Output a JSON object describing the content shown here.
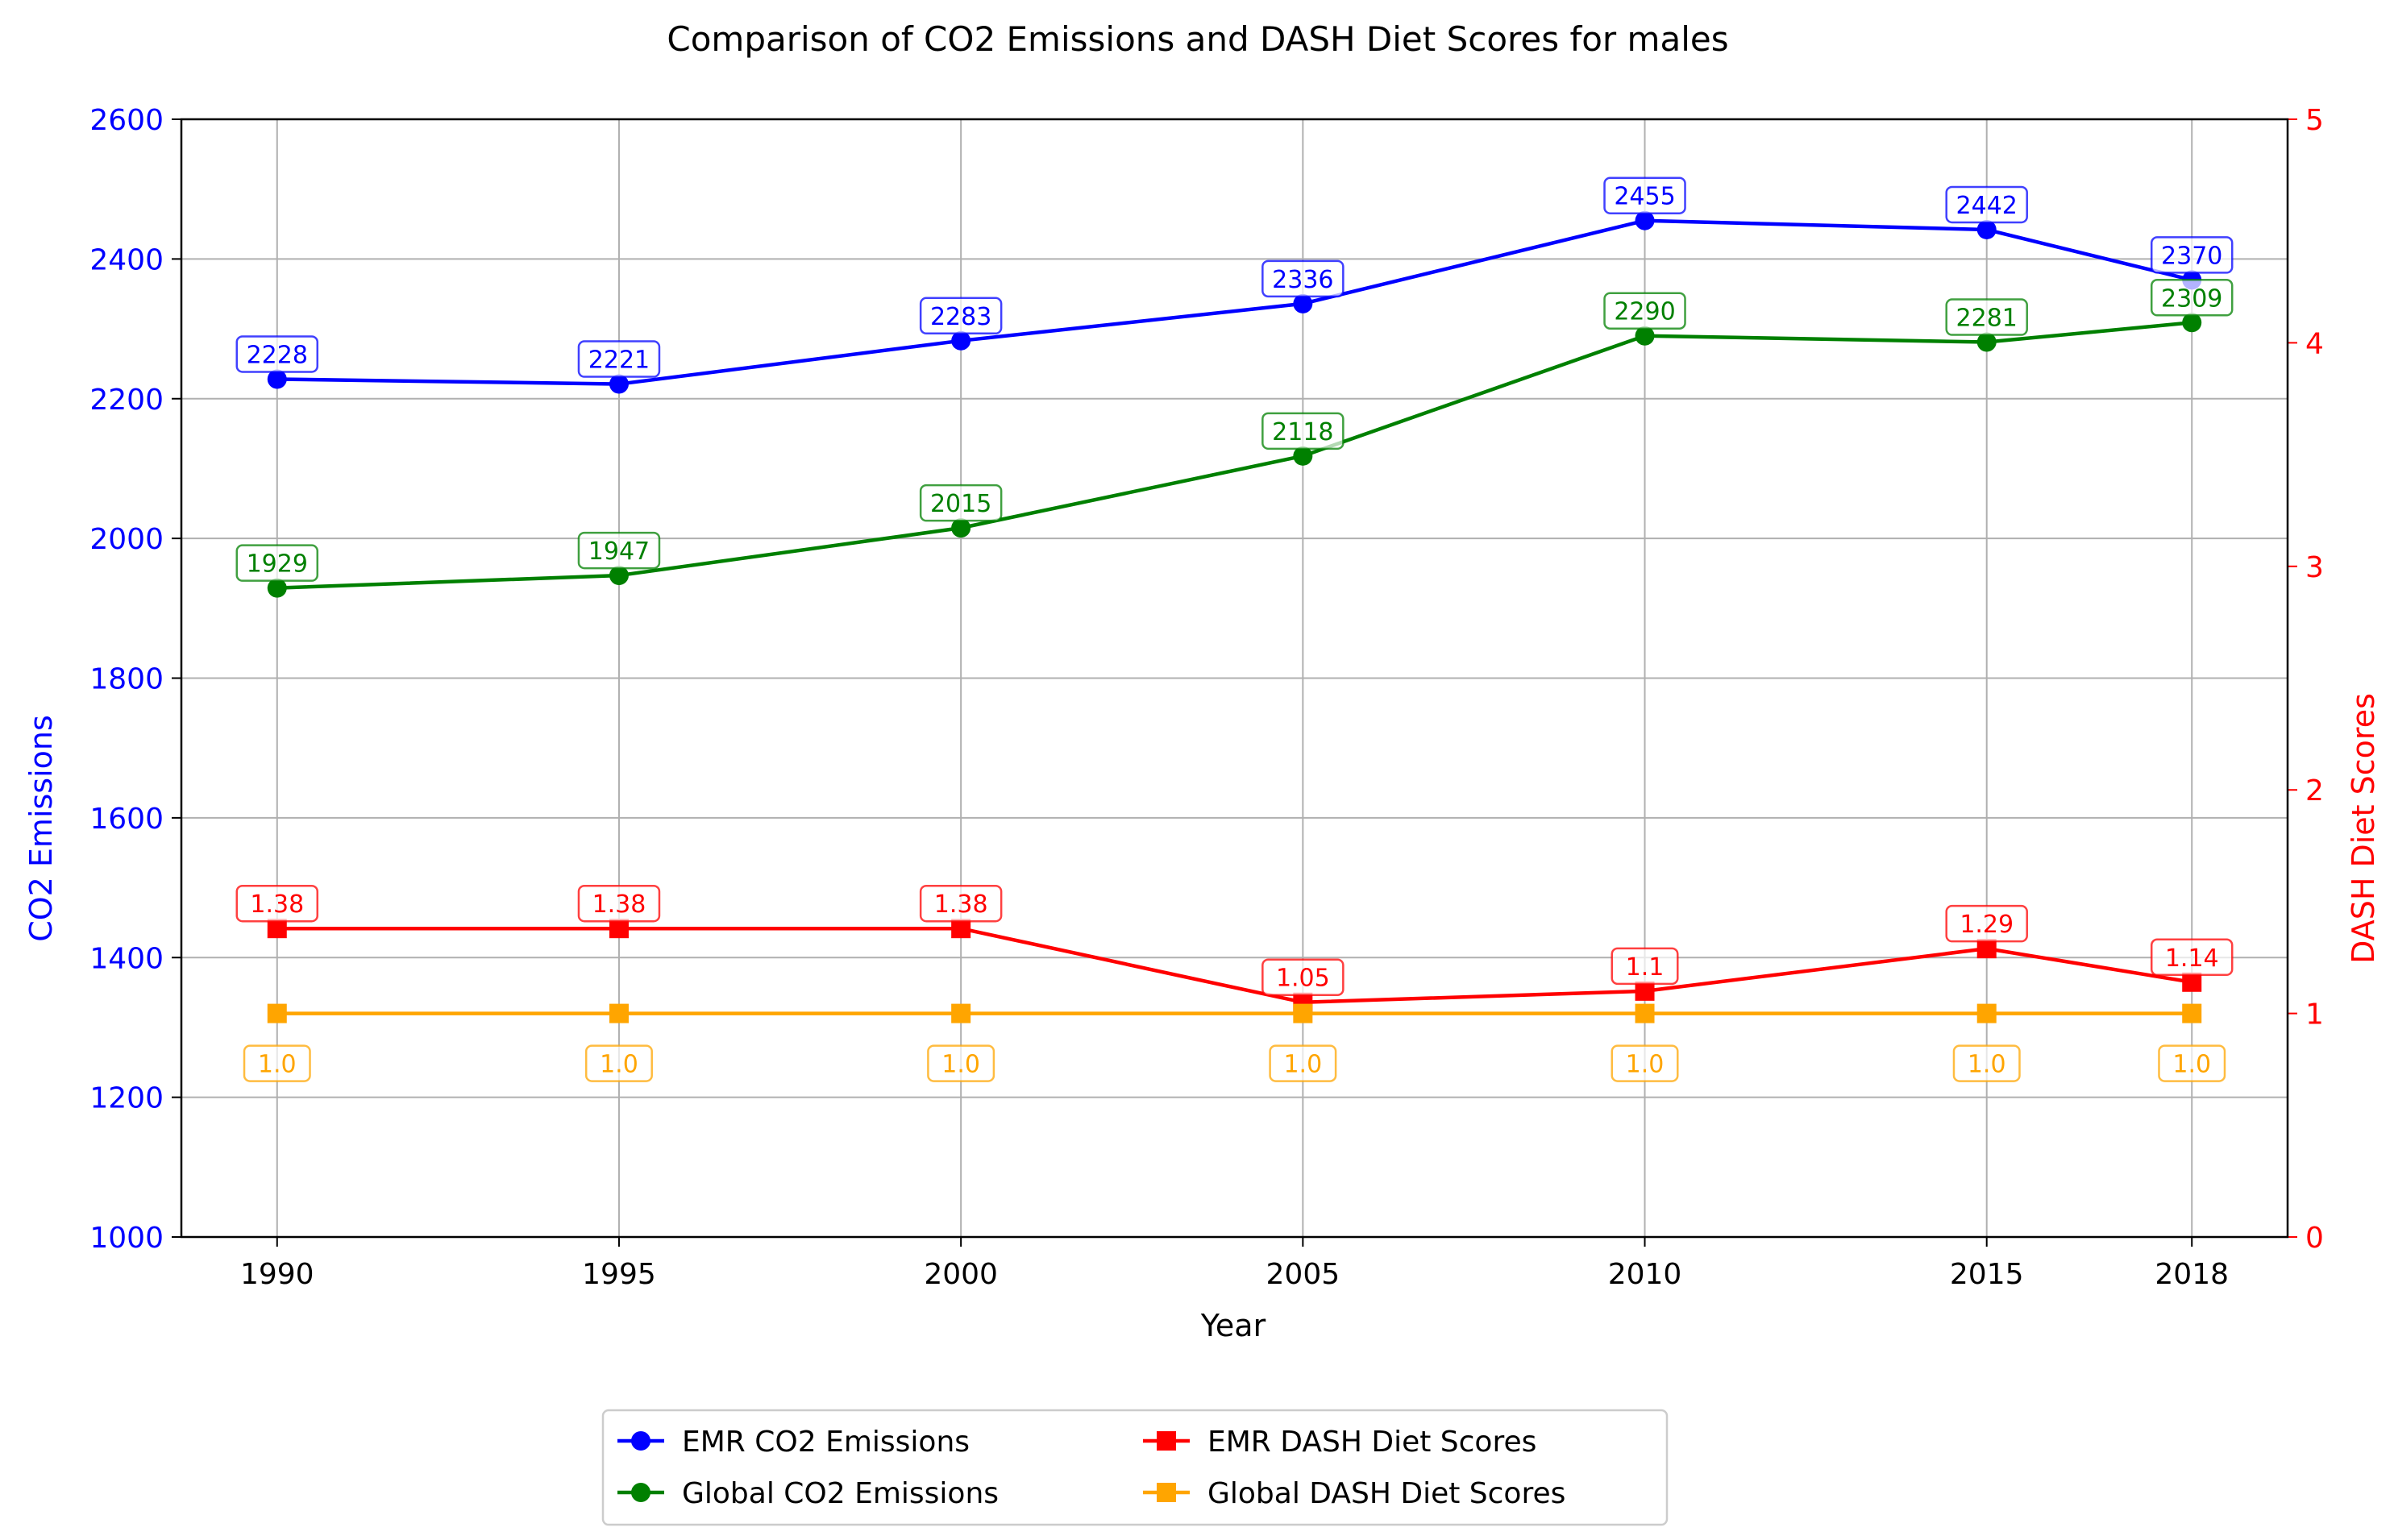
{
  "chart_data": {
    "type": "line",
    "title": "Comparison of CO2 Emissions and DASH Diet Scores for males",
    "xlabel": "Year",
    "ylabel_left": "CO2 Emissions",
    "ylabel_right": "DASH Diet Scores",
    "x": [
      1990,
      1995,
      2000,
      2005,
      2010,
      2015,
      2018
    ],
    "x_tick_labels": [
      "1990",
      "1995",
      "2000",
      "2005",
      "2010",
      "2015",
      "2018"
    ],
    "ylim_left": [
      1000,
      2600
    ],
    "yticks_left": [
      "1000",
      "1200",
      "1400",
      "1600",
      "1800",
      "2000",
      "2200",
      "2400",
      "2600"
    ],
    "ylim_right": [
      0,
      5
    ],
    "yticks_right": [
      "0",
      "1",
      "2",
      "3",
      "4",
      "5"
    ],
    "grid": true,
    "legend_position": "bottom-center",
    "left_axis_color": "#0000ff",
    "right_axis_color": "#ff0000",
    "series": [
      {
        "name": "EMR CO2 Emissions",
        "axis": "left",
        "marker": "circle",
        "color": "#0000ff",
        "values": [
          2228,
          2221,
          2283,
          2336,
          2455,
          2442,
          2370
        ],
        "labels": [
          "2228",
          "2221",
          "2283",
          "2336",
          "2455",
          "2442",
          "2370"
        ]
      },
      {
        "name": "Global CO2 Emissions",
        "axis": "left",
        "marker": "circle",
        "color": "#008000",
        "values": [
          1929,
          1947,
          2015,
          2118,
          2290,
          2281,
          2309
        ],
        "labels": [
          "1929",
          "1947",
          "2015",
          "2118",
          "2290",
          "2281",
          "2309"
        ]
      },
      {
        "name": "EMR DASH Diet Scores",
        "axis": "right",
        "marker": "square",
        "color": "#ff0000",
        "values": [
          1.38,
          1.38,
          1.38,
          1.05,
          1.1,
          1.29,
          1.14
        ],
        "labels": [
          "1.38",
          "1.38",
          "1.38",
          "1.05",
          "1.1",
          "1.29",
          "1.14"
        ]
      },
      {
        "name": "Global DASH Diet Scores",
        "axis": "right",
        "marker": "square",
        "color": "#ffa500",
        "values": [
          1.0,
          1.0,
          1.0,
          1.0,
          1.0,
          1.0,
          1.0
        ],
        "labels": [
          "1.0",
          "1.0",
          "1.0",
          "1.0",
          "1.0",
          "1.0",
          "1.0"
        ]
      }
    ]
  }
}
